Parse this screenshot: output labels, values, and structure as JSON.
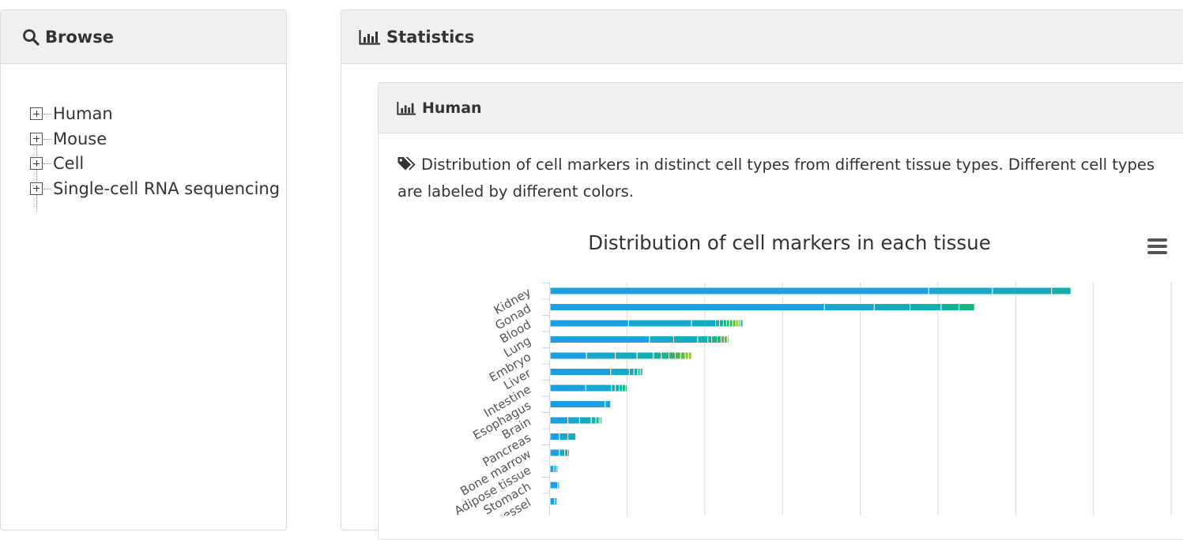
{
  "browse": {
    "title": "Browse",
    "tree_items": [
      {
        "label": "Human"
      },
      {
        "label": "Mouse"
      },
      {
        "label": "Cell"
      },
      {
        "label": "Single-cell RNA sequencing"
      }
    ]
  },
  "statistics": {
    "title": "Statistics"
  },
  "human": {
    "title": "Human",
    "description": "Distribution of cell markers in distinct cell types from different tissue types. Different cell types are labeled by different colors."
  },
  "chart_data": {
    "type": "bar",
    "orientation": "horizontal",
    "stacked": true,
    "title": "Distribution of cell markers in each tissue",
    "xlabel": "",
    "ylabel": "",
    "categories": [
      "Kidney",
      "Gonad",
      "Blood",
      "Lung",
      "Embryo",
      "Liver",
      "Intestine",
      "Esophagus",
      "Brain",
      "Pancreas",
      "Bone marrow",
      "Adipose tissue",
      "Stomach",
      "Blood vessel"
    ],
    "xlim": [
      0,
      8
    ],
    "grid": true,
    "colors": [
      "#1ba1e2",
      "#17a8cf",
      "#12abc0",
      "#0eb0b0",
      "#10b29a",
      "#1ab585",
      "#29b56e",
      "#45b652",
      "#62b93c",
      "#86bd2b",
      "#a4c21f"
    ],
    "segments": [
      [
        4.87,
        0.82,
        0.76,
        0.25
      ],
      [
        3.53,
        0.64,
        0.46,
        0.4,
        0.23,
        0.2
      ],
      [
        1.01,
        0.81,
        0.31,
        0.05,
        0.05,
        0.04,
        0.04,
        0.04,
        0.04,
        0.03,
        0.03,
        0.03
      ],
      [
        1.28,
        0.31,
        0.31,
        0.13,
        0.05,
        0.07,
        0.05,
        0.04,
        0.04,
        0.02
      ],
      [
        0.47,
        0.37,
        0.28,
        0.21,
        0.1,
        0.1,
        0.08,
        0.07,
        0.06,
        0.04,
        0.04
      ],
      [
        0.78,
        0.24,
        0.06,
        0.05,
        0.03,
        0.03
      ],
      [
        0.46,
        0.33,
        0.05,
        0.05,
        0.04,
        0.04,
        0.02
      ],
      [
        0.71,
        0.07
      ],
      [
        0.23,
        0.15,
        0.15,
        0.06,
        0.04,
        0.02,
        0.02
      ],
      [
        0.12,
        0.11,
        0.1
      ],
      [
        0.12,
        0.07,
        0.04,
        0.02
      ],
      [
        0.05,
        0.03,
        0.02
      ],
      [
        0.1,
        0.02
      ],
      [
        0.06,
        0.03
      ]
    ]
  }
}
